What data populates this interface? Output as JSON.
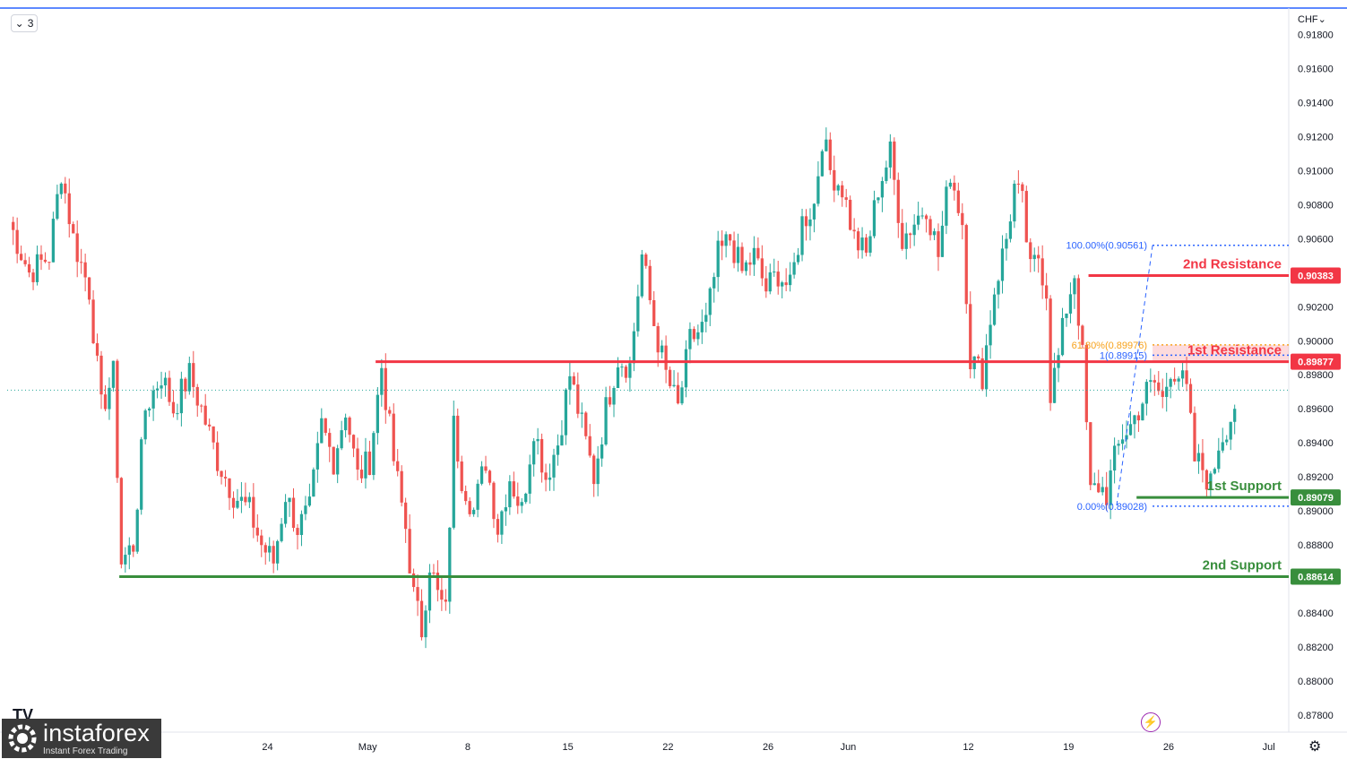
{
  "toolbar": {
    "collapse_label": "3",
    "chevron": "chevron-down-icon"
  },
  "currency": "CHF",
  "logo": {
    "name": "instaforex",
    "tagline": "Instant Forex Trading",
    "mark": "TV"
  },
  "colors": {
    "up": "#26a69a",
    "down": "#ef5350",
    "resistance": "#f23645",
    "support": "#388e3c",
    "fib": "#2962ff",
    "fib_orange": "#f7a21b",
    "text": "#131722",
    "grid_text": "#131722"
  },
  "chart_data": {
    "type": "candlestick",
    "symbol_currency": "CHF",
    "ylim": [
      0.877,
      0.9195
    ],
    "y_ticks": [
      "0.91800",
      "0.91600",
      "0.91400",
      "0.91200",
      "0.91000",
      "0.90800",
      "0.90600",
      "0.90200",
      "0.90000",
      "0.89800",
      "0.89600",
      "0.89400",
      "0.89200",
      "0.89000",
      "0.88800",
      "0.88400",
      "0.88200",
      "0.88000",
      "0.87800"
    ],
    "x_ticks": [
      {
        "label": "24",
        "index": 65
      },
      {
        "label": "May",
        "index": 90
      },
      {
        "label": "8",
        "index": 115
      },
      {
        "label": "15",
        "index": 140
      },
      {
        "label": "22",
        "index": 165
      },
      {
        "label": "26",
        "index": 190
      },
      {
        "label": "Jun",
        "index": 210
      },
      {
        "label": "12",
        "index": 240
      },
      {
        "label": "19",
        "index": 265
      },
      {
        "label": "26",
        "index": 290
      },
      {
        "label": "Jul",
        "index": 315
      }
    ],
    "close_path": [
      [
        0,
        0.907
      ],
      [
        5,
        0.904
      ],
      [
        10,
        0.905
      ],
      [
        13,
        0.91
      ],
      [
        16,
        0.906
      ],
      [
        20,
        0.903
      ],
      [
        23,
        0.896
      ],
      [
        26,
        0.898
      ],
      [
        28,
        0.887
      ],
      [
        31,
        0.888
      ],
      [
        34,
        0.896
      ],
      [
        38,
        0.898
      ],
      [
        41,
        0.896
      ],
      [
        45,
        0.898
      ],
      [
        48,
        0.896
      ],
      [
        52,
        0.893
      ],
      [
        56,
        0.891
      ],
      [
        60,
        0.89
      ],
      [
        63,
        0.888
      ],
      [
        66,
        0.887
      ],
      [
        69,
        0.891
      ],
      [
        72,
        0.889
      ],
      [
        75,
        0.89
      ],
      [
        78,
        0.895
      ],
      [
        81,
        0.893
      ],
      [
        84,
        0.896
      ],
      [
        87,
        0.892
      ],
      [
        90,
        0.893
      ],
      [
        93,
        0.8985
      ],
      [
        96,
        0.893
      ],
      [
        99,
        0.889
      ],
      [
        101,
        0.885
      ],
      [
        103,
        0.883
      ],
      [
        105,
        0.887
      ],
      [
        107,
        0.885
      ],
      [
        109,
        0.884
      ],
      [
        111,
        0.895
      ],
      [
        113,
        0.892
      ],
      [
        116,
        0.89
      ],
      [
        119,
        0.893
      ],
      [
        122,
        0.889
      ],
      [
        125,
        0.892
      ],
      [
        128,
        0.89
      ],
      [
        131,
        0.895
      ],
      [
        134,
        0.892
      ],
      [
        137,
        0.894
      ],
      [
        140,
        0.898
      ],
      [
        143,
        0.895
      ],
      [
        146,
        0.892
      ],
      [
        149,
        0.896
      ],
      [
        152,
        0.899
      ],
      [
        155,
        0.8985
      ],
      [
        158,
        0.905
      ],
      [
        161,
        0.901
      ],
      [
        164,
        0.898
      ],
      [
        167,
        0.896
      ],
      [
        170,
        0.9
      ],
      [
        174,
        0.901
      ],
      [
        177,
        0.905
      ],
      [
        180,
        0.906
      ],
      [
        183,
        0.904
      ],
      [
        186,
        0.905
      ],
      [
        189,
        0.903
      ],
      [
        192,
        0.904
      ],
      [
        195,
        0.903
      ],
      [
        198,
        0.907
      ],
      [
        201,
        0.908
      ],
      [
        203,
        0.912
      ],
      [
        205,
        0.91
      ],
      [
        208,
        0.909
      ],
      [
        211,
        0.906
      ],
      [
        214,
        0.905
      ],
      [
        217,
        0.909
      ],
      [
        220,
        0.911
      ],
      [
        223,
        0.906
      ],
      [
        226,
        0.907
      ],
      [
        229,
        0.908
      ],
      [
        232,
        0.905
      ],
      [
        235,
        0.91
      ],
      [
        238,
        0.907
      ],
      [
        240,
        0.899
      ],
      [
        243,
        0.898
      ],
      [
        246,
        0.903
      ],
      [
        249,
        0.906
      ],
      [
        251,
        0.909
      ],
      [
        253,
        0.908
      ],
      [
        255,
        0.904
      ],
      [
        257,
        0.905
      ],
      [
        259,
        0.903
      ],
      [
        260,
        0.897
      ],
      [
        262,
        0.899
      ],
      [
        264,
        0.902
      ],
      [
        266,
        0.904
      ],
      [
        268,
        0.899
      ],
      [
        270,
        0.891
      ],
      [
        272,
        0.8915
      ],
      [
        274,
        0.891
      ],
      [
        276,
        0.893
      ],
      [
        278,
        0.8945
      ],
      [
        280,
        0.895
      ],
      [
        282,
        0.896
      ],
      [
        284,
        0.897
      ],
      [
        286,
        0.8975
      ],
      [
        288,
        0.8965
      ],
      [
        290,
        0.8985
      ],
      [
        292,
        0.898
      ],
      [
        294,
        0.897
      ],
      [
        296,
        0.893
      ],
      [
        298,
        0.8925
      ],
      [
        300,
        0.8915
      ],
      [
        302,
        0.894
      ],
      [
        304,
        0.895
      ],
      [
        306,
        0.896
      ]
    ],
    "levels": [
      {
        "name": "2nd Resistance",
        "value": 0.90383,
        "label": "0.90383",
        "kind": "resistance",
        "from_index": 270
      },
      {
        "name": "1st Resistance",
        "value": 0.89877,
        "label": "0.89877",
        "kind": "resistance",
        "from_index": 92
      },
      {
        "name": "1st Support",
        "value": 0.89079,
        "label": "0.89079",
        "kind": "support",
        "from_index": 282
      },
      {
        "name": "2nd Support",
        "value": 0.88614,
        "label": "0.88614",
        "kind": "support",
        "from_index": 28
      }
    ],
    "fib": [
      {
        "label": "100.00%(0.90561)",
        "value": 0.90561
      },
      {
        "label": "61.80%(0.89976)",
        "value": 0.89976
      },
      {
        "label": "1(0.89915)",
        "value": 0.89915
      },
      {
        "label": "0.00%(0.89028)",
        "value": 0.89028
      }
    ],
    "fib_zone": [
      0.89877,
      0.89976
    ],
    "last_price_line": 0.8971
  }
}
